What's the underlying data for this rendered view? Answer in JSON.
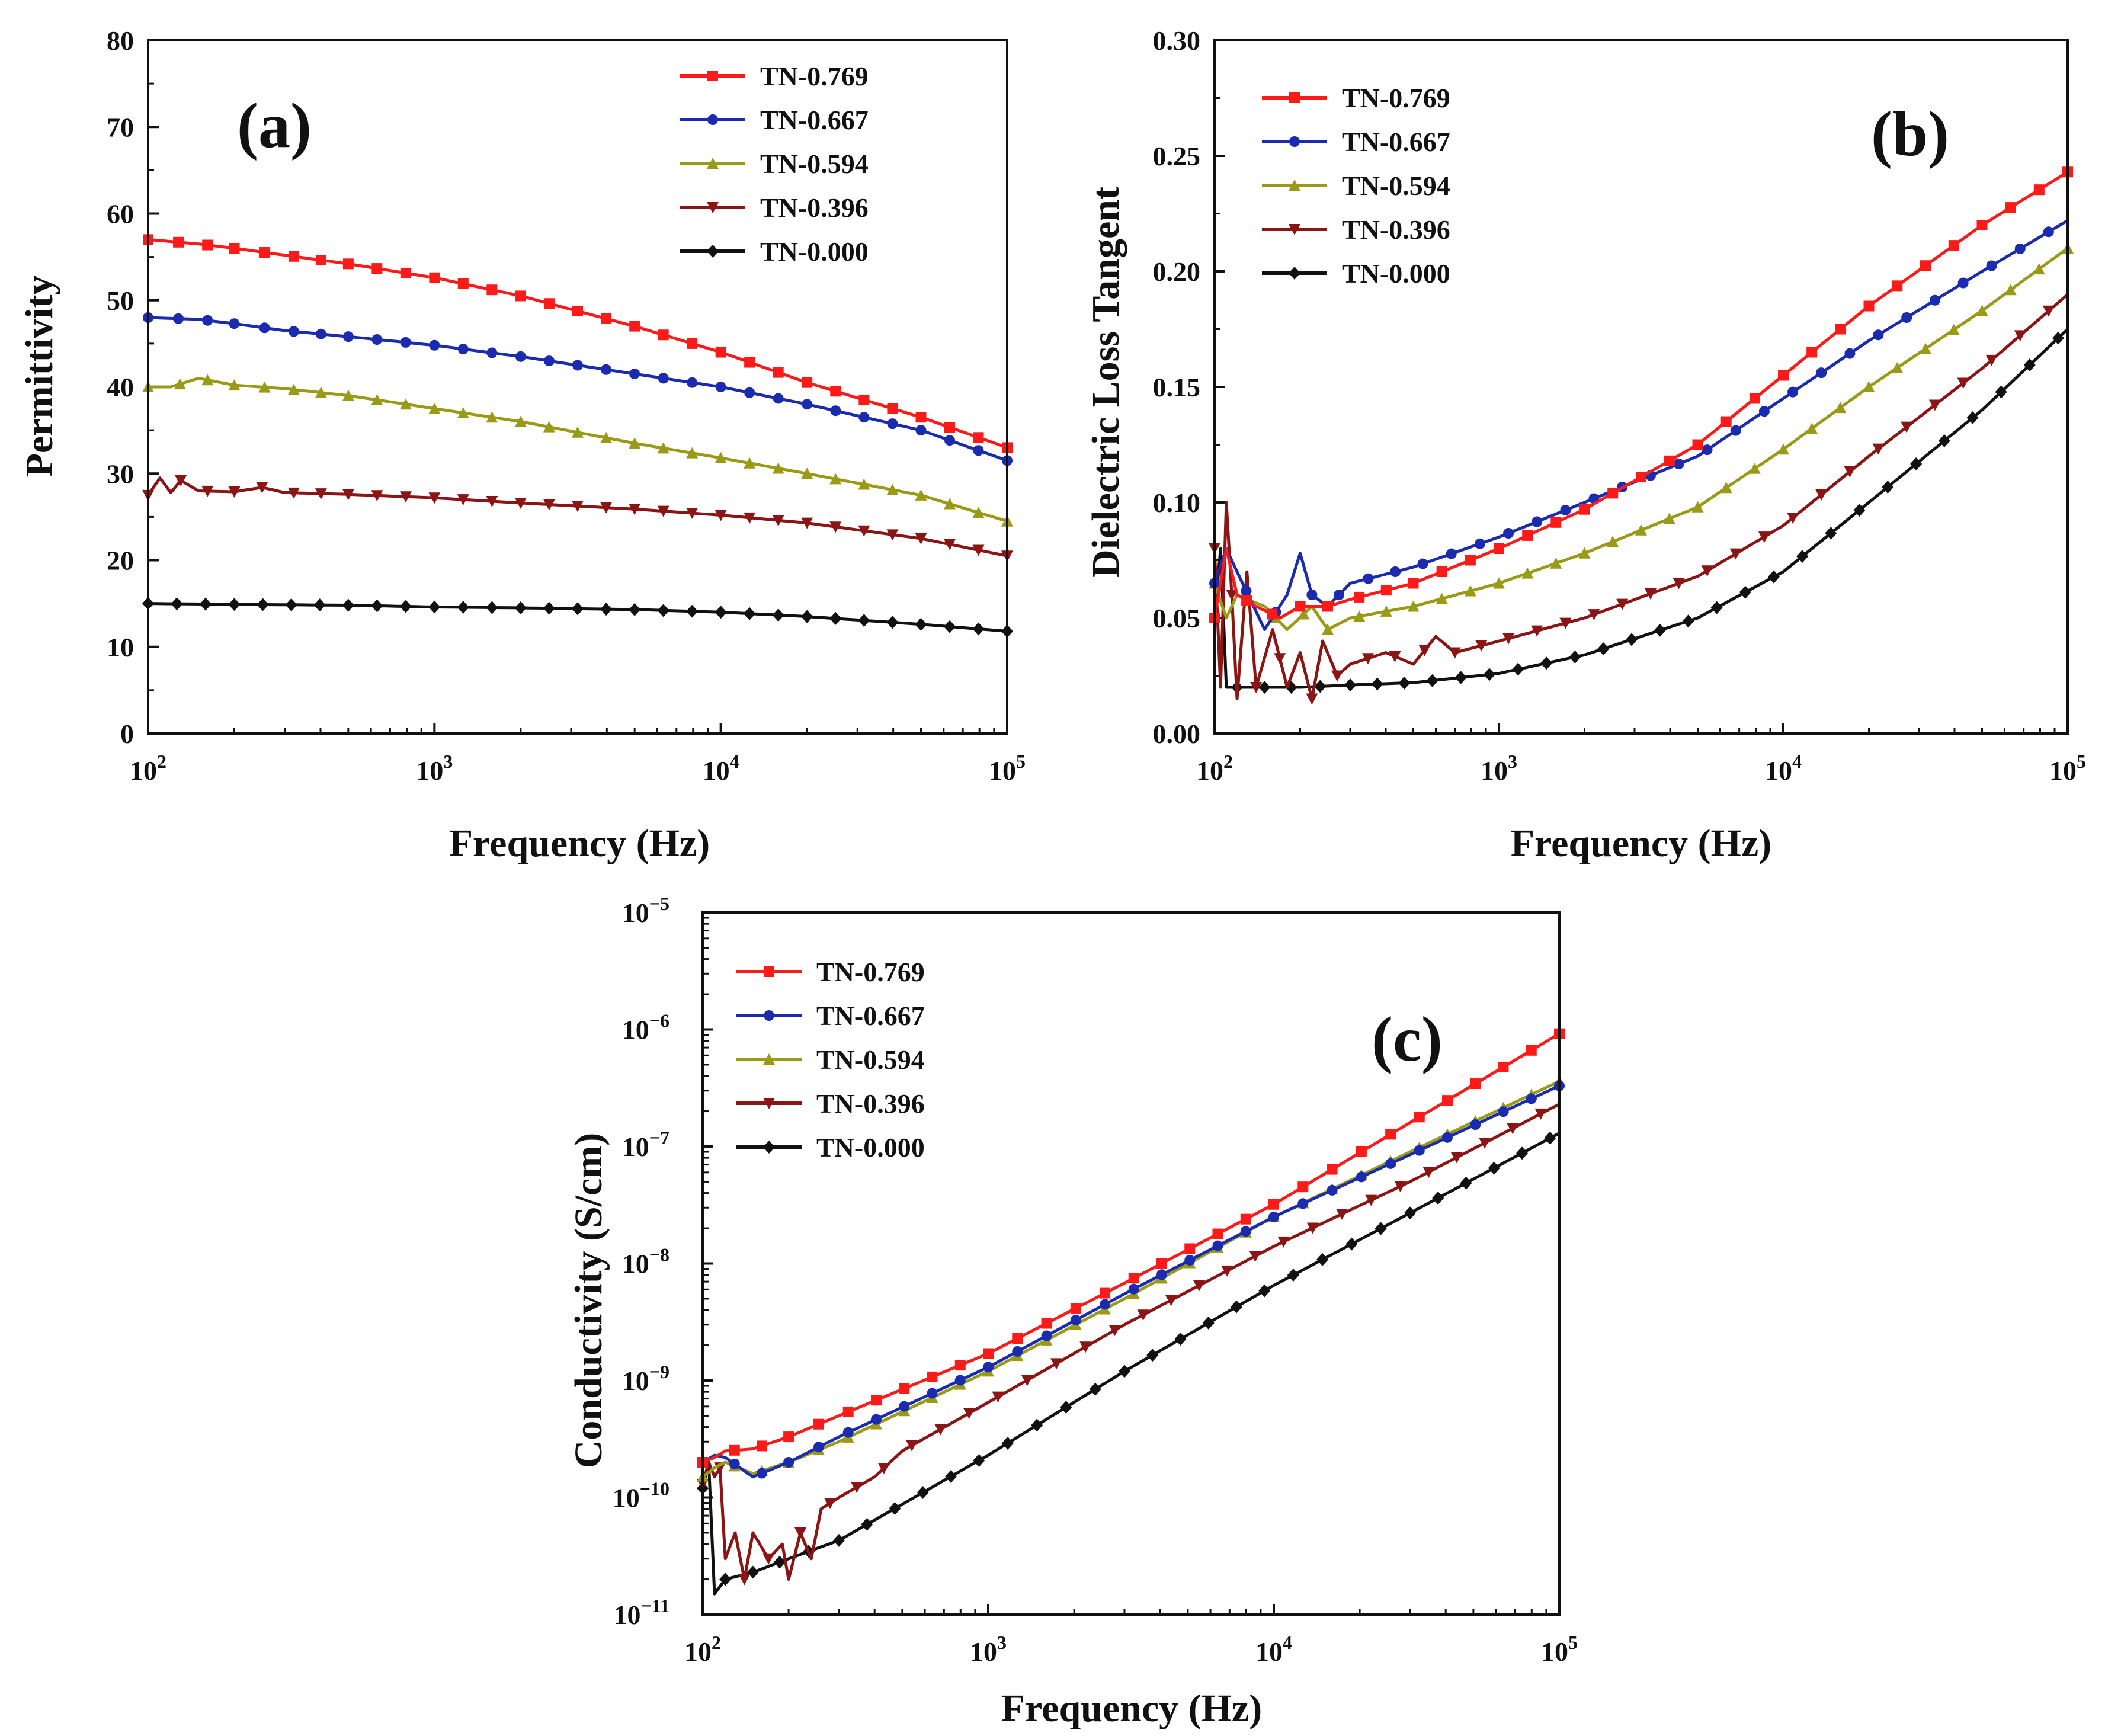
{
  "colors": {
    "TN-0.769": "#ff1a1a",
    "TN-0.667": "#1a2bb0",
    "TN-0.594": "#9a9a16",
    "TN-0.396": "#8b1414",
    "TN-0.000": "#111111"
  },
  "markers": {
    "TN-0.769": "square",
    "TN-0.667": "circle",
    "TN-0.594": "triangle-up",
    "TN-0.396": "triangle-down",
    "TN-0.000": "diamond"
  },
  "chart_data": [
    {
      "id": "a",
      "type": "line",
      "panel_label": "(a)",
      "xlabel": "Frequency (Hz)",
      "ylabel": "Permittivity",
      "xscale": "log",
      "yscale": "linear",
      "xlim": [
        100,
        100000
      ],
      "ylim": [
        0,
        80
      ],
      "x_tick_labels": [
        {
          "base": "10",
          "exp": "2"
        },
        {
          "base": "10",
          "exp": "3"
        },
        {
          "base": "10",
          "exp": "4"
        },
        {
          "base": "10",
          "exp": "5"
        }
      ],
      "y_tick_labels": [
        "0",
        "10",
        "20",
        "30",
        "40",
        "50",
        "60",
        "70",
        "80"
      ],
      "legend_position": "top-right",
      "series": [
        {
          "name": "TN-0.769",
          "x": [
            100,
            150,
            200,
            300,
            500,
            1000,
            2000,
            5000,
            10000,
            20000,
            50000,
            100000
          ],
          "values": [
            57,
            56.5,
            56,
            55.2,
            54.2,
            52.6,
            50.5,
            47,
            44,
            40.5,
            36.5,
            33
          ]
        },
        {
          "name": "TN-0.667",
          "x": [
            100,
            150,
            200,
            300,
            500,
            1000,
            2000,
            5000,
            10000,
            20000,
            50000,
            100000
          ],
          "values": [
            48,
            47.8,
            47.3,
            46.5,
            45.8,
            44.8,
            43.5,
            41.5,
            40,
            38,
            35,
            31.5
          ]
        },
        {
          "name": "TN-0.594",
          "x": [
            100,
            120,
            150,
            200,
            300,
            500,
            1000,
            2000,
            5000,
            10000,
            20000,
            50000,
            100000
          ],
          "values": [
            40,
            40,
            41,
            40.2,
            39.8,
            39,
            37.5,
            36,
            33.5,
            31.8,
            30,
            27.5,
            24.5
          ]
        },
        {
          "name": "TN-0.396",
          "x": [
            100,
            110,
            120,
            130,
            150,
            200,
            250,
            300,
            500,
            1000,
            2000,
            5000,
            10000,
            20000,
            50000,
            100000
          ],
          "values": [
            27.5,
            29.5,
            27.8,
            29.2,
            28,
            27.9,
            28.4,
            27.8,
            27.6,
            27.2,
            26.6,
            25.9,
            25.2,
            24.3,
            22.5,
            20.5
          ]
        },
        {
          "name": "TN-0.000",
          "x": [
            100,
            200,
            500,
            1000,
            2000,
            5000,
            10000,
            20000,
            50000,
            100000
          ],
          "values": [
            15,
            14.9,
            14.8,
            14.6,
            14.5,
            14.3,
            14,
            13.5,
            12.6,
            11.8
          ]
        }
      ]
    },
    {
      "id": "b",
      "type": "line",
      "panel_label": "(b)",
      "xlabel": "Frequency (Hz)",
      "ylabel": "Dielectric Loss Tangent",
      "xscale": "log",
      "yscale": "linear",
      "xlim": [
        100,
        100000
      ],
      "ylim": [
        0,
        0.3
      ],
      "x_tick_labels": [
        {
          "base": "10",
          "exp": "2"
        },
        {
          "base": "10",
          "exp": "3"
        },
        {
          "base": "10",
          "exp": "4"
        },
        {
          "base": "10",
          "exp": "5"
        }
      ],
      "y_tick_labels": [
        "0.00",
        "0.05",
        "0.10",
        "0.15",
        "0.20",
        "0.25",
        "0.30"
      ],
      "legend_position": "top-left",
      "series": [
        {
          "name": "TN-0.769",
          "x": [
            100,
            110,
            120,
            140,
            170,
            200,
            250,
            300,
            500,
            1000,
            2000,
            5000,
            10000,
            20000,
            50000,
            100000
          ],
          "values": [
            0.05,
            0.08,
            0.06,
            0.055,
            0.05,
            0.055,
            0.055,
            0.058,
            0.065,
            0.08,
            0.097,
            0.125,
            0.155,
            0.185,
            0.22,
            0.243
          ]
        },
        {
          "name": "TN-0.667",
          "x": [
            100,
            110,
            120,
            150,
            180,
            200,
            220,
            250,
            300,
            500,
            1000,
            2000,
            5000,
            10000,
            20000,
            50000,
            100000
          ],
          "values": [
            0.065,
            0.08,
            0.07,
            0.045,
            0.06,
            0.078,
            0.06,
            0.055,
            0.065,
            0.072,
            0.085,
            0.1,
            0.12,
            0.145,
            0.17,
            0.2,
            0.222
          ]
        },
        {
          "name": "TN-0.594",
          "x": [
            100,
            110,
            120,
            150,
            180,
            220,
            250,
            300,
            500,
            1000,
            2000,
            5000,
            10000,
            20000,
            50000,
            100000
          ],
          "values": [
            0.065,
            0.05,
            0.06,
            0.055,
            0.045,
            0.055,
            0.045,
            0.05,
            0.055,
            0.065,
            0.078,
            0.098,
            0.123,
            0.15,
            0.183,
            0.21
          ]
        },
        {
          "name": "TN-0.396",
          "x": [
            100,
            105,
            110,
            115,
            120,
            130,
            140,
            160,
            180,
            200,
            220,
            240,
            270,
            300,
            400,
            500,
            600,
            700,
            1000,
            2000,
            5000,
            10000,
            20000,
            50000,
            100000
          ],
          "values": [
            0.08,
            0.02,
            0.1,
            0.06,
            0.015,
            0.07,
            0.02,
            0.045,
            0.02,
            0.035,
            0.015,
            0.04,
            0.025,
            0.03,
            0.035,
            0.03,
            0.042,
            0.035,
            0.04,
            0.05,
            0.068,
            0.09,
            0.12,
            0.158,
            0.19
          ]
        },
        {
          "name": "TN-0.000",
          "x": [
            100,
            105,
            110,
            120,
            150,
            200,
            300,
            500,
            1000,
            2000,
            5000,
            10000,
            20000,
            50000,
            100000
          ],
          "values": [
            0.05,
            0.08,
            0.02,
            0.02,
            0.02,
            0.02,
            0.021,
            0.022,
            0.026,
            0.034,
            0.05,
            0.07,
            0.1,
            0.14,
            0.175
          ]
        }
      ]
    },
    {
      "id": "c",
      "type": "line",
      "panel_label": "(c)",
      "xlabel": "Frequency (Hz)",
      "ylabel": "Conductivity (S/cm)",
      "xscale": "log",
      "yscale": "log",
      "xlim": [
        100,
        100000
      ],
      "ylim": [
        1e-11,
        1e-05
      ],
      "x_tick_labels": [
        {
          "base": "10",
          "exp": "2"
        },
        {
          "base": "10",
          "exp": "3"
        },
        {
          "base": "10",
          "exp": "4"
        },
        {
          "base": "10",
          "exp": "5"
        }
      ],
      "y_tick_labels": [
        {
          "base": "10",
          "exp": "−11"
        },
        {
          "base": "10",
          "exp": "−10"
        },
        {
          "base": "10",
          "exp": "−9"
        },
        {
          "base": "10",
          "exp": "−8"
        },
        {
          "base": "10",
          "exp": "−7"
        },
        {
          "base": "10",
          "exp": "−6"
        },
        {
          "base": "10",
          "exp": "−5"
        }
      ],
      "legend_position": "top-left",
      "series": [
        {
          "name": "TN-0.769",
          "x": [
            100,
            110,
            120,
            150,
            200,
            300,
            1000,
            3000,
            10000,
            30000,
            100000
          ],
          "values": [
            2e-10,
            2.2e-10,
            2.5e-10,
            2.6e-10,
            3.3e-10,
            5e-10,
            1.7e-09,
            6.8e-09,
            3.2e-08,
            1.6e-07,
            9.2e-07
          ]
        },
        {
          "name": "TN-0.667",
          "x": [
            100,
            110,
            120,
            150,
            200,
            300,
            1000,
            3000,
            10000,
            30000,
            100000
          ],
          "values": [
            2e-10,
            2.3e-10,
            2.2e-10,
            1.5e-10,
            2e-10,
            3.3e-10,
            1.3e-09,
            5.5e-09,
            2.5e-08,
            8.5e-08,
            3.3e-07
          ]
        },
        {
          "name": "TN-0.594",
          "x": [
            100,
            110,
            120,
            150,
            200,
            300,
            1000,
            3000,
            10000,
            30000,
            100000
          ],
          "values": [
            1.5e-10,
            1.8e-10,
            2e-10,
            1.6e-10,
            2e-10,
            3e-10,
            1.2e-09,
            5e-09,
            2.5e-08,
            9e-08,
            3.6e-07
          ]
        },
        {
          "name": "TN-0.396",
          "x": [
            100,
            105,
            110,
            115,
            120,
            130,
            140,
            150,
            170,
            190,
            200,
            220,
            240,
            260,
            300,
            400,
            500,
            1000,
            3000,
            10000,
            30000,
            100000
          ],
          "values": [
            1.3e-10,
            2e-10,
            1.5e-10,
            1.8e-10,
            3e-11,
            5e-11,
            2e-11,
            5e-11,
            3e-11,
            4e-11,
            2e-11,
            5e-11,
            3e-11,
            8e-11,
            1e-10,
            1.5e-10,
            2.5e-10,
            6.5e-10,
            3e-09,
            1.4e-08,
            5e-08,
            2.3e-07
          ]
        },
        {
          "name": "TN-0.000",
          "x": [
            100,
            105,
            110,
            120,
            150,
            200,
            300,
            1000,
            3000,
            10000,
            30000,
            100000
          ],
          "values": [
            1.2e-10,
            2e-10,
            1.5e-11,
            2e-11,
            2.3e-11,
            3e-11,
            4.3e-11,
            2.3e-10,
            1.2e-09,
            6.5e-09,
            2.7e-08,
            1.3e-07
          ]
        }
      ]
    }
  ]
}
